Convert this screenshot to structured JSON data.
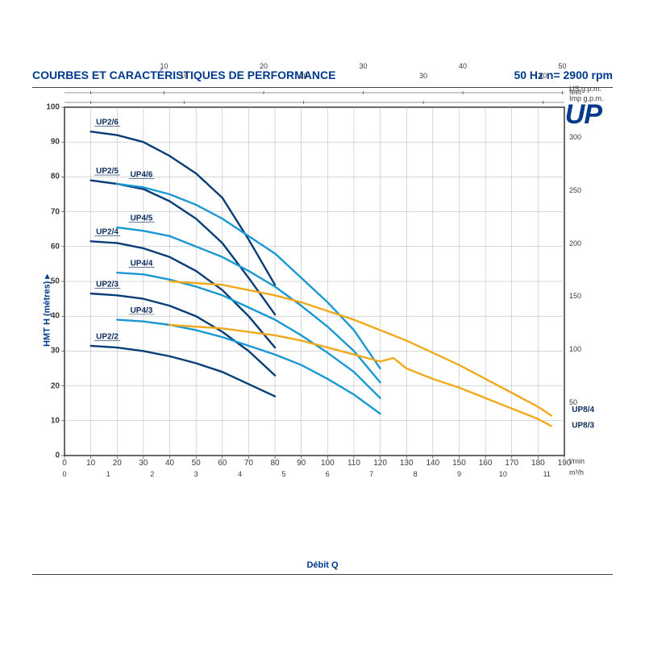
{
  "header": {
    "title": "COURBES ET CARACTÉRISTIQUES DE PERFORMANCE",
    "speed": "50 Hz    n= 2900 rpm"
  },
  "brand": "UP",
  "axes": {
    "y_left": {
      "label": "HMT H (mètres) ▸",
      "min": 0,
      "max": 100,
      "ticks": [
        0,
        10,
        20,
        30,
        40,
        50,
        60,
        70,
        80,
        90,
        100
      ]
    },
    "y_right": {
      "label": "feet",
      "min": 0,
      "max": 328,
      "ticks": [
        50,
        100,
        150,
        200,
        250,
        300
      ]
    },
    "x_bottom1": {
      "label": "Débit Q",
      "unit": "l/min",
      "min": 0,
      "max": 190,
      "ticks": [
        0,
        10,
        20,
        30,
        40,
        50,
        60,
        70,
        80,
        90,
        100,
        110,
        120,
        130,
        140,
        150,
        160,
        170,
        180,
        190
      ]
    },
    "x_bottom2": {
      "unit": "m³/h",
      "min": 0,
      "max": 11.4,
      "ticks": [
        0,
        1,
        2,
        3,
        4,
        5,
        6,
        7,
        8,
        9,
        10,
        11
      ]
    },
    "x_top1": {
      "unit": "US g.p.m.",
      "min_l": 0,
      "max_l": 190,
      "ticks_l": [
        10,
        37.85,
        75.7,
        113.55,
        151.4,
        189.25
      ],
      "labels": [
        "",
        "10",
        "20",
        "30",
        "40",
        "50"
      ]
    },
    "x_top2": {
      "unit": "Imp g.p.m.",
      "min_l": 0,
      "max_l": 190,
      "ticks_l": [
        10,
        45.46,
        90.92,
        136.38,
        181.84
      ],
      "labels": [
        "",
        "10",
        "20",
        "30",
        "40"
      ]
    }
  },
  "style": {
    "grid_color": "#b0b0b0",
    "outer_border": "#2a2a2a",
    "bg": "#ffffff",
    "colors": {
      "UP2": "#083d77",
      "UP4": "#1998d4",
      "UP8": "#f2a91c"
    },
    "line_width": 2.4
  },
  "series": [
    {
      "name": "UP2/6",
      "color": "UP2",
      "label_xy": [
        12,
        95
      ],
      "points": [
        [
          10,
          93
        ],
        [
          20,
          92
        ],
        [
          30,
          90
        ],
        [
          40,
          86
        ],
        [
          50,
          81
        ],
        [
          60,
          74
        ],
        [
          70,
          62
        ],
        [
          80,
          49
        ]
      ]
    },
    {
      "name": "UP2/5",
      "color": "UP2",
      "label_xy": [
        12,
        81
      ],
      "points": [
        [
          10,
          79
        ],
        [
          20,
          78
        ],
        [
          30,
          76.5
        ],
        [
          40,
          73
        ],
        [
          50,
          68
        ],
        [
          60,
          61
        ],
        [
          70,
          51
        ],
        [
          80,
          40.5
        ]
      ]
    },
    {
      "name": "UP2/4",
      "color": "UP2",
      "label_xy": [
        12,
        63.5
      ],
      "points": [
        [
          10,
          61.5
        ],
        [
          20,
          61
        ],
        [
          30,
          59.5
        ],
        [
          40,
          57
        ],
        [
          50,
          53
        ],
        [
          60,
          47.5
        ],
        [
          70,
          40
        ],
        [
          80,
          31
        ]
      ]
    },
    {
      "name": "UP2/3",
      "color": "UP2",
      "label_xy": [
        12,
        48.5
      ],
      "points": [
        [
          10,
          46.5
        ],
        [
          20,
          46
        ],
        [
          30,
          45
        ],
        [
          40,
          43
        ],
        [
          50,
          40
        ],
        [
          60,
          35.5
        ],
        [
          70,
          30
        ],
        [
          80,
          23
        ]
      ]
    },
    {
      "name": "UP2/2",
      "color": "UP2",
      "label_xy": [
        12,
        33.5
      ],
      "points": [
        [
          10,
          31.5
        ],
        [
          20,
          31
        ],
        [
          30,
          30
        ],
        [
          40,
          28.5
        ],
        [
          50,
          26.5
        ],
        [
          60,
          24
        ],
        [
          70,
          20.5
        ],
        [
          80,
          17
        ]
      ]
    },
    {
      "name": "UP4/6",
      "color": "UP4",
      "label_xy": [
        25,
        80
      ],
      "points": [
        [
          20,
          78
        ],
        [
          30,
          77
        ],
        [
          40,
          75
        ],
        [
          50,
          72
        ],
        [
          60,
          68
        ],
        [
          70,
          63
        ],
        [
          80,
          58
        ],
        [
          90,
          51
        ],
        [
          100,
          44
        ],
        [
          110,
          36
        ],
        [
          120,
          25
        ]
      ]
    },
    {
      "name": "UP4/5",
      "color": "UP4",
      "label_xy": [
        25,
        67.5
      ],
      "points": [
        [
          20,
          65.5
        ],
        [
          30,
          64.5
        ],
        [
          40,
          63
        ],
        [
          50,
          60
        ],
        [
          60,
          57
        ],
        [
          70,
          53
        ],
        [
          80,
          48.5
        ],
        [
          90,
          43
        ],
        [
          100,
          37
        ],
        [
          110,
          30
        ],
        [
          120,
          21
        ]
      ]
    },
    {
      "name": "UP4/4",
      "color": "UP4",
      "label_xy": [
        25,
        54.5
      ],
      "points": [
        [
          20,
          52.5
        ],
        [
          30,
          52
        ],
        [
          40,
          50.5
        ],
        [
          50,
          48.5
        ],
        [
          60,
          46
        ],
        [
          70,
          42.5
        ],
        [
          80,
          39
        ],
        [
          90,
          34.5
        ],
        [
          100,
          29.5
        ],
        [
          110,
          24
        ],
        [
          120,
          16.5
        ]
      ]
    },
    {
      "name": "UP4/3",
      "color": "UP4",
      "label_xy": [
        25,
        41
      ],
      "points": [
        [
          20,
          39
        ],
        [
          30,
          38.5
        ],
        [
          40,
          37.5
        ],
        [
          50,
          36
        ],
        [
          60,
          34
        ],
        [
          70,
          31.5
        ],
        [
          80,
          29
        ],
        [
          90,
          26
        ],
        [
          100,
          22
        ],
        [
          110,
          17.5
        ],
        [
          120,
          12
        ]
      ]
    },
    {
      "name": "UP8/4",
      "color": "UP8",
      "label_xy": [
        191,
        12.5
      ],
      "label_side": "right",
      "points": [
        [
          40,
          50
        ],
        [
          50,
          49.5
        ],
        [
          60,
          49
        ],
        [
          70,
          47.5
        ],
        [
          80,
          46
        ],
        [
          90,
          44
        ],
        [
          100,
          41.5
        ],
        [
          110,
          39
        ],
        [
          120,
          36
        ],
        [
          130,
          33
        ],
        [
          140,
          29.5
        ],
        [
          150,
          26
        ],
        [
          160,
          22
        ],
        [
          170,
          18
        ],
        [
          180,
          14
        ],
        [
          185,
          11.5
        ]
      ]
    },
    {
      "name": "UP8/3",
      "color": "UP8",
      "label_xy": [
        191,
        8
      ],
      "label_side": "right",
      "points": [
        [
          40,
          37.5
        ],
        [
          50,
          37
        ],
        [
          60,
          36.5
        ],
        [
          70,
          35.5
        ],
        [
          80,
          34.5
        ],
        [
          90,
          33
        ],
        [
          100,
          31
        ],
        [
          110,
          29
        ],
        [
          120,
          27
        ],
        [
          125,
          28
        ],
        [
          130,
          25
        ],
        [
          140,
          22
        ],
        [
          150,
          19.5
        ],
        [
          160,
          16.5
        ],
        [
          170,
          13.5
        ],
        [
          180,
          10.5
        ],
        [
          185,
          8.5
        ]
      ]
    }
  ]
}
